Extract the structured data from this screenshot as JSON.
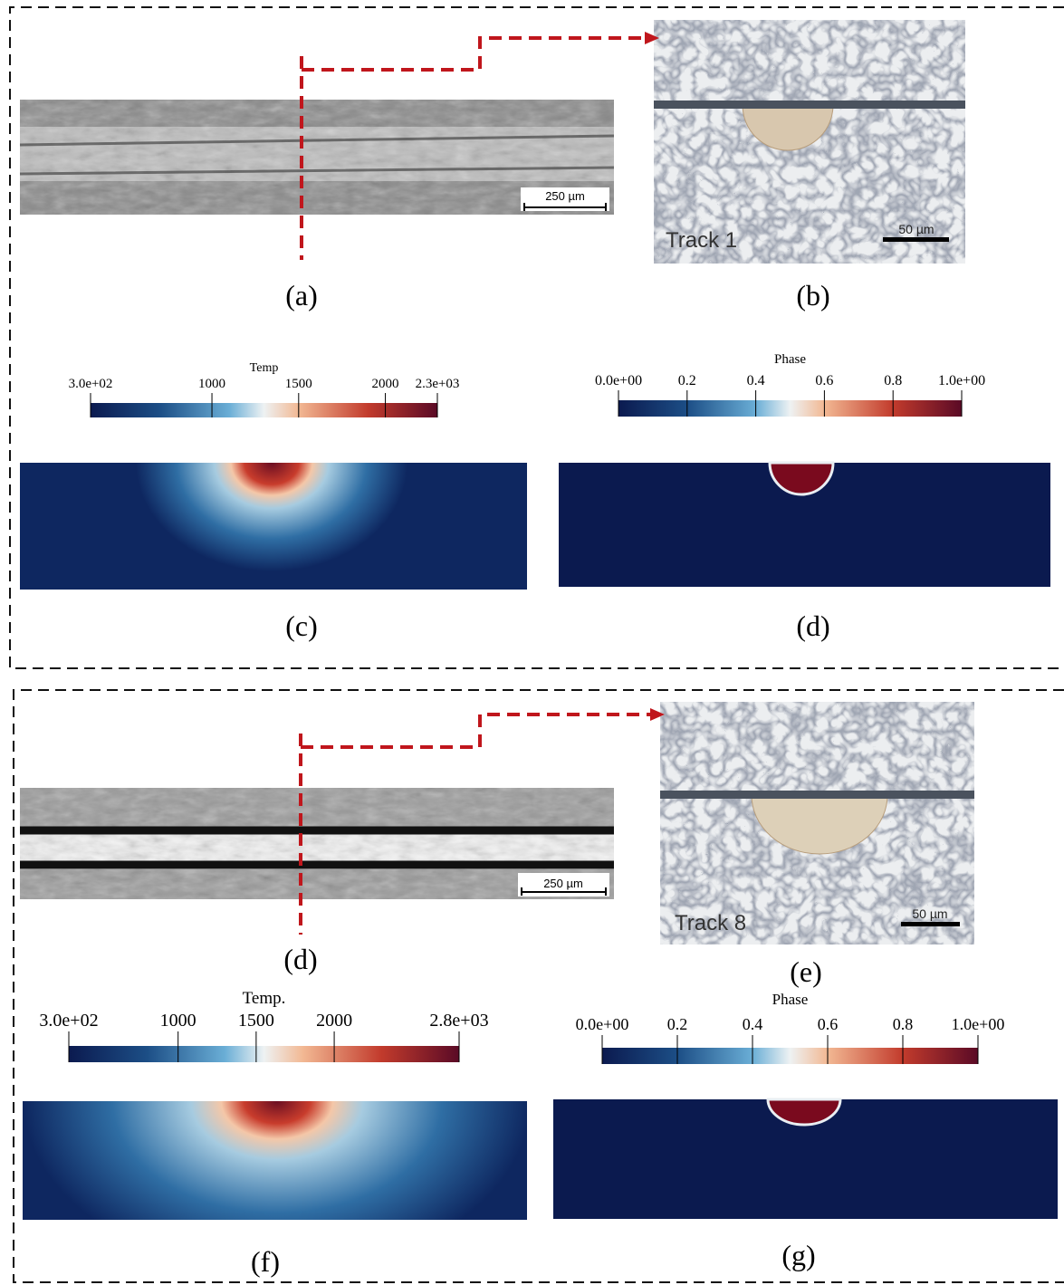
{
  "top": {
    "panels": {
      "a": {
        "label": "(a)",
        "scale_bar": "250 µm"
      },
      "b": {
        "label": "(b)",
        "track": "Track 1",
        "scale_bar": "50 µm"
      },
      "c": {
        "label": "(c)"
      },
      "d": {
        "label": "(d)"
      }
    },
    "temp_colorbar": {
      "title": "Temp",
      "range": [
        300,
        2300
      ],
      "ticks": [
        {
          "value": 300,
          "label": "3.0e+02"
        },
        1000,
        1500,
        2000,
        {
          "value": 2300,
          "label": "2.3e+03"
        }
      ]
    },
    "phase_colorbar": {
      "title": "Phase",
      "range": [
        0,
        1
      ],
      "ticks": [
        {
          "value": 0,
          "label": "0.0e+00"
        },
        0.2,
        0.4,
        0.6,
        0.8,
        {
          "value": 1,
          "label": "1.0e+00"
        }
      ]
    }
  },
  "bottom": {
    "panels": {
      "d": {
        "label": "(d)",
        "scale_bar": "250 µm"
      },
      "e": {
        "label": "(e)",
        "track": "Track 8",
        "scale_bar": "50 µm"
      },
      "f": {
        "label": "(f)"
      },
      "g": {
        "label": "(g)"
      }
    },
    "temp_colorbar": {
      "title": "Temp.",
      "range": [
        300,
        2800
      ],
      "ticks": [
        {
          "value": 300,
          "label": "3.0e+02"
        },
        1000,
        1500,
        2000,
        {
          "value": 2800,
          "label": "2.8e+03"
        }
      ]
    },
    "phase_colorbar": {
      "title": "Phase",
      "range": [
        0,
        1
      ],
      "ticks": [
        {
          "value": 0,
          "label": "0.0e+00"
        },
        0.2,
        0.4,
        0.6,
        0.8,
        {
          "value": 1,
          "label": "1.0e+00"
        }
      ]
    }
  }
}
